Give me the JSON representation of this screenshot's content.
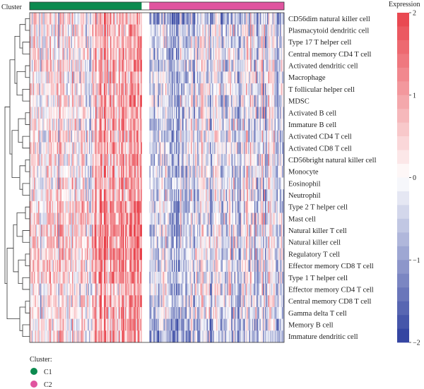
{
  "chart_data": {
    "type": "heatmap",
    "legend_title": "Expression",
    "colorbar": {
      "ticks": [
        2,
        1,
        0,
        -1,
        -2
      ],
      "range": [
        -2,
        2
      ],
      "colors": {
        "high": "#e8414a",
        "mid": "#ffffff",
        "low": "#2c3e9e"
      }
    },
    "cluster_bar_label": "Cluster",
    "cluster_legend_title": "Cluster:",
    "clusters": [
      {
        "name": "C1",
        "color": "#0c8a4f",
        "fraction": 0.44
      },
      {
        "name": "C2",
        "color": "#e0549f",
        "fraction": 0.53
      }
    ],
    "rows": [
      "CD56dim natural killer cell",
      "Plasmacytoid dendritic cell",
      "Type 17 T helper cell",
      "Central memory CD4 T cell",
      "Activated dendritic cell",
      "Macrophage",
      "T follicular helper cell",
      "MDSC",
      "Activated B cell",
      "Immature B cell",
      "Activated CD4 T cell",
      "Activated CD8 T cell",
      "CD56bright natural killer cell",
      "Monocyte",
      "Eosinophil",
      "Neutrophil",
      "Type 2 T helper cell",
      "Mast cell",
      "Natural killer T cell",
      "Natural killer cell",
      "Regulatory T cell",
      "Effector memory CD8 T cell",
      "Type 1 T helper cell",
      "Effector memory CD4 T cell",
      "Central memory CD8 T cell",
      "Gamma delta T cell",
      "Memory B cell",
      "Immature dendritic cell"
    ]
  }
}
